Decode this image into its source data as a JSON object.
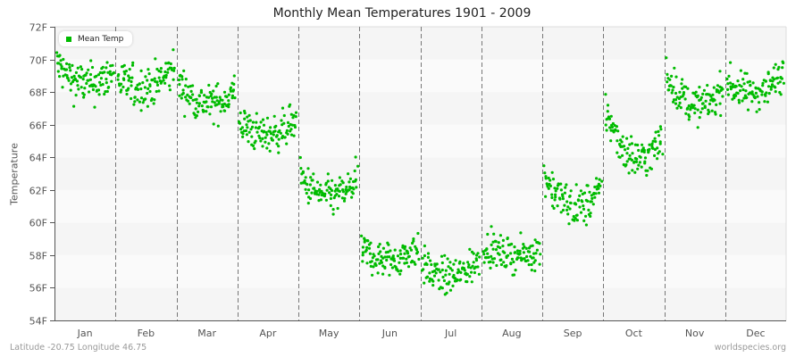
{
  "title": "Monthly Mean Temperatures 1901 - 2009",
  "footer": {
    "location": "Latitude -20.75 Longitude 46.75",
    "source": "worldspecies.org"
  },
  "legend": {
    "label": "Mean Temp",
    "color": "#00bb00"
  },
  "colors": {
    "point": "#00bb00",
    "band_dark": "#f5f5f5",
    "band_light": "#fafafa",
    "axis": "#555555",
    "divider": "#777777"
  },
  "chart_data": {
    "type": "scatter",
    "title": "Monthly Mean Temperatures 1901 - 2009",
    "xlabel": "",
    "ylabel": "Temperature",
    "categories": [
      "Jan",
      "Feb",
      "Mar",
      "Apr",
      "May",
      "Jun",
      "Jul",
      "Aug",
      "Sep",
      "Oct",
      "Nov",
      "Dec"
    ],
    "y_ticks": [
      "54F",
      "56F",
      "58F",
      "60F",
      "62F",
      "64F",
      "66F",
      "68F",
      "70F",
      "72F"
    ],
    "ylim": [
      54,
      72
    ],
    "years": [
      1901,
      2009
    ],
    "grid": "alternating horizontal bands, dashed vertical month dividers",
    "legend_position": "top-left inside plot",
    "series": [
      {
        "name": "Mean Temp",
        "monthly_profile": [
          {
            "month": "Jan",
            "start": 69.8,
            "mid": 68.5,
            "end": 69.3,
            "spread": 0.9,
            "min": 66.8,
            "max": 71.4
          },
          {
            "month": "Feb",
            "start": 68.8,
            "mid": 68.3,
            "end": 69.5,
            "spread": 0.9,
            "min": 65.7,
            "max": 70.7
          },
          {
            "month": "Mar",
            "start": 68.6,
            "mid": 67.3,
            "end": 68.1,
            "spread": 0.8,
            "min": 65.9,
            "max": 70.4
          },
          {
            "month": "Apr",
            "start": 66.2,
            "mid": 65.4,
            "end": 66.4,
            "spread": 0.8,
            "min": 64.0,
            "max": 68.2
          },
          {
            "month": "May",
            "start": 62.8,
            "mid": 61.6,
            "end": 62.6,
            "spread": 0.8,
            "min": 59.8,
            "max": 64.5
          },
          {
            "month": "Jun",
            "start": 58.4,
            "mid": 57.7,
            "end": 58.6,
            "spread": 0.8,
            "min": 56.0,
            "max": 61.0
          },
          {
            "month": "Jul",
            "start": 57.4,
            "mid": 56.7,
            "end": 57.8,
            "spread": 0.8,
            "min": 55.1,
            "max": 59.5
          },
          {
            "month": "Aug",
            "start": 58.6,
            "mid": 58.0,
            "end": 58.3,
            "spread": 0.7,
            "min": 56.3,
            "max": 60.6
          },
          {
            "month": "Sep",
            "start": 63.0,
            "mid": 61.0,
            "end": 62.0,
            "spread": 0.9,
            "min": 59.3,
            "max": 65.5
          },
          {
            "month": "Oct",
            "start": 67.0,
            "mid": 64.0,
            "end": 65.2,
            "spread": 0.9,
            "min": 62.5,
            "max": 69.0
          },
          {
            "month": "Nov",
            "start": 69.2,
            "mid": 67.2,
            "end": 68.3,
            "spread": 0.8,
            "min": 64.8,
            "max": 71.1
          },
          {
            "month": "Dec",
            "start": 68.6,
            "mid": 68.0,
            "end": 69.3,
            "spread": 0.8,
            "min": 66.5,
            "max": 70.9
          }
        ],
        "monthly_mean_approx": [
          69.0,
          68.6,
          67.8,
          65.8,
          62.2,
          58.1,
          57.2,
          58.3,
          61.6,
          65.1,
          68.0,
          68.5
        ]
      }
    ]
  }
}
